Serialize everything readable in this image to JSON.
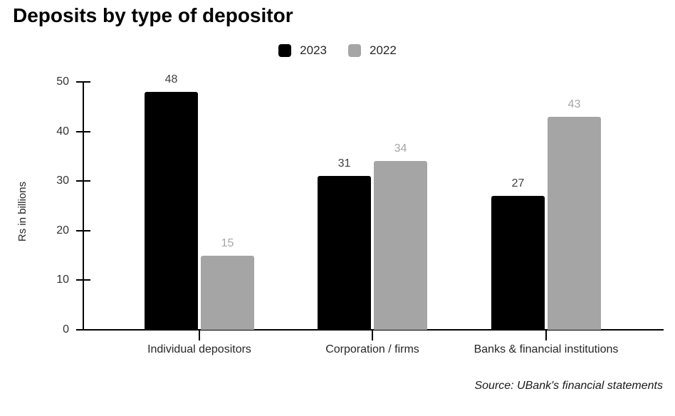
{
  "title": "Deposits by type of depositor",
  "source": "Source: UBank's financial statements",
  "chart_data": {
    "type": "bar",
    "title": "Deposits by type of depositor",
    "ylabel": "Rs in billions",
    "xlabel": "",
    "categories": [
      "Individual depositors",
      "Corporation / firms",
      "Banks & financial institutions"
    ],
    "series": [
      {
        "name": "2023",
        "color": "#000000",
        "label_color": "#404040",
        "values": [
          48,
          31,
          27
        ]
      },
      {
        "name": "2022",
        "color": "#a5a5a5",
        "label_color": "#a6a6a6",
        "values": [
          15,
          34,
          43
        ]
      }
    ],
    "yticks": [
      0,
      10,
      20,
      30,
      40,
      50
    ],
    "ylim": [
      0,
      50
    ],
    "grid": false,
    "legend_position": "top-center",
    "data_labels": true
  }
}
